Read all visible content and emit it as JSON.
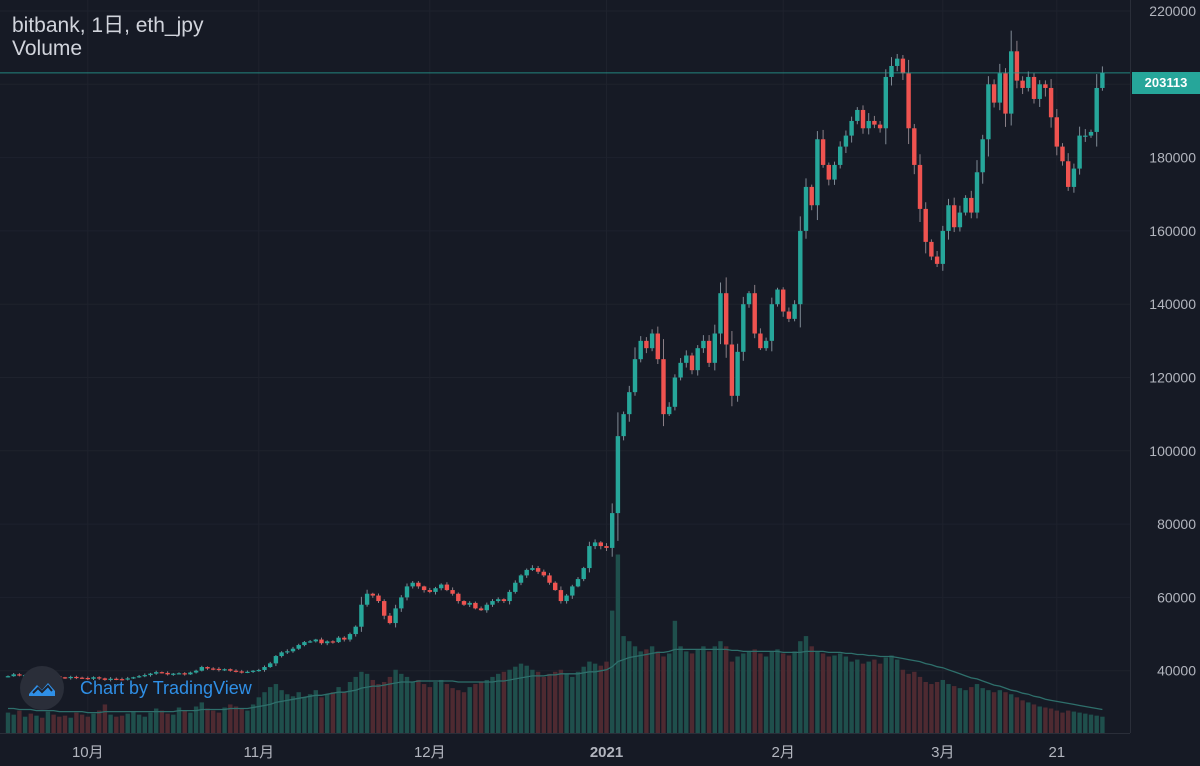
{
  "header": {
    "title": "bitbank, 1日, eth_jpy",
    "indicator": "Volume"
  },
  "last_price_label": "203113",
  "watermark": {
    "text": "Chart by TradingView",
    "icon": "tradingview-logo-icon"
  },
  "colors": {
    "background": "#161a25",
    "up": "#26a69a",
    "down": "#ef5350",
    "text": "#b2b5be",
    "last_price": "#26a69a"
  },
  "chart_data": {
    "type": "candlestick",
    "ylim": [
      23000,
      223000
    ],
    "yticks": [
      40000,
      60000,
      80000,
      100000,
      120000,
      140000,
      160000,
      180000,
      200000,
      220000
    ],
    "xticks": [
      {
        "label": "10月",
        "index": 14
      },
      {
        "label": "11月",
        "index": 44
      },
      {
        "label": "12月",
        "index": 74
      },
      {
        "label": "2021",
        "index": 105
      },
      {
        "label": "2月",
        "index": 136
      },
      {
        "label": "3月",
        "index": 164
      },
      {
        "label": "21",
        "index": 184
      }
    ],
    "last_price": 203113,
    "close": [
      38500,
      39000,
      38700,
      38800,
      38600,
      38900,
      38400,
      38700,
      38500,
      38200,
      38000,
      38300,
      38100,
      38000,
      37800,
      38200,
      37900,
      37500,
      37800,
      37700,
      37600,
      37900,
      38200,
      38500,
      38800,
      39200,
      39600,
      39400,
      39000,
      39200,
      39300,
      39000,
      39500,
      40000,
      41000,
      40600,
      40500,
      40200,
      40400,
      40000,
      39800,
      39500,
      39700,
      40000,
      40200,
      41000,
      42000,
      44000,
      45000,
      45300,
      46000,
      47000,
      47800,
      48000,
      48500,
      47500,
      48000,
      47800,
      49000,
      48500,
      50000,
      52000,
      58000,
      61000,
      60500,
      59000,
      55000,
      53000,
      57000,
      60000,
      63000,
      64000,
      63000,
      62000,
      61500,
      62500,
      63500,
      62000,
      61000,
      59000,
      58000,
      58500,
      57000,
      56500,
      58000,
      59000,
      59500,
      59000,
      61500,
      64000,
      66000,
      67500,
      68000,
      67000,
      66000,
      64000,
      62000,
      59000,
      60500,
      63000,
      65000,
      68000,
      74000,
      75000,
      74000,
      73500,
      83000,
      104000,
      110000,
      116000,
      125000,
      130000,
      128000,
      132000,
      125000,
      110000,
      112000,
      120000,
      124000,
      126000,
      122000,
      128000,
      130000,
      124000,
      132000,
      143000,
      129000,
      115000,
      127000,
      140000,
      143000,
      132000,
      128000,
      130000,
      140000,
      144000,
      138000,
      136000,
      140000,
      160000,
      172000,
      167000,
      185000,
      178000,
      174000,
      178000,
      183000,
      186000,
      190000,
      193000,
      188000,
      190000,
      189000,
      188000,
      202000,
      205000,
      207000,
      203000,
      188000,
      178000,
      166000,
      157000,
      153000,
      151000,
      160000,
      167000,
      161000,
      165000,
      169000,
      165000,
      176000,
      185000,
      200000,
      195000,
      203000,
      192000,
      209000,
      201000,
      199000,
      202000,
      196000,
      200000,
      199000,
      191000,
      183000,
      179000,
      172000,
      177000,
      186000,
      186000,
      187000,
      199000,
      203113
    ],
    "volume": [
      20,
      18,
      22,
      16,
      19,
      17,
      15,
      21,
      18,
      16,
      17,
      15,
      20,
      18,
      16,
      19,
      22,
      28,
      18,
      16,
      17,
      19,
      21,
      18,
      16,
      20,
      24,
      22,
      19,
      18,
      25,
      22,
      20,
      26,
      30,
      24,
      22,
      20,
      25,
      28,
      26,
      24,
      22,
      28,
      35,
      40,
      45,
      48,
      42,
      38,
      36,
      40,
      35,
      38,
      42,
      35,
      38,
      40,
      45,
      40,
      50,
      55,
      60,
      58,
      52,
      48,
      50,
      55,
      62,
      58,
      55,
      50,
      52,
      48,
      45,
      50,
      52,
      48,
      44,
      42,
      40,
      45,
      48,
      50,
      52,
      55,
      58,
      60,
      62,
      65,
      68,
      66,
      62,
      60,
      55,
      58,
      60,
      62,
      58,
      55,
      60,
      65,
      70,
      68,
      66,
      70,
      120,
      175,
      95,
      90,
      85,
      80,
      82,
      85,
      80,
      75,
      78,
      110,
      85,
      80,
      78,
      82,
      85,
      80,
      85,
      90,
      85,
      70,
      75,
      78,
      80,
      82,
      78,
      75,
      80,
      82,
      78,
      76,
      80,
      90,
      95,
      85,
      80,
      78,
      75,
      76,
      78,
      75,
      70,
      72,
      68,
      70,
      72,
      68,
      74,
      76,
      72,
      62,
      58,
      60,
      55,
      50,
      48,
      50,
      52,
      48,
      46,
      44,
      42,
      45,
      48,
      44,
      42,
      40,
      42,
      40,
      38,
      35,
      32,
      30,
      28,
      26,
      25,
      24,
      22,
      20,
      22,
      21,
      20,
      19,
      18,
      17,
      16
    ],
    "volume_ma": [
      24,
      24,
      23,
      23,
      23,
      22,
      22,
      22,
      22,
      21,
      21,
      21,
      21,
      21,
      20,
      20,
      20,
      21,
      21,
      21,
      21,
      21,
      21,
      21,
      21,
      21,
      21,
      21,
      21,
      21,
      22,
      22,
      22,
      22,
      23,
      23,
      23,
      23,
      23,
      24,
      24,
      24,
      24,
      25,
      26,
      27,
      28,
      30,
      31,
      32,
      33,
      34,
      35,
      36,
      37,
      37,
      38,
      39,
      40,
      40,
      41,
      42,
      44,
      45,
      46,
      46,
      47,
      48,
      49,
      50,
      50,
      50,
      51,
      51,
      51,
      51,
      51,
      51,
      51,
      50,
      50,
      50,
      50,
      50,
      50,
      50,
      51,
      51,
      52,
      53,
      54,
      55,
      56,
      56,
      56,
      57,
      57,
      58,
      58,
      58,
      58,
      59,
      60,
      60,
      61,
      62,
      65,
      70,
      72,
      74,
      75,
      76,
      77,
      78,
      79,
      79,
      80,
      82,
      82,
      82,
      82,
      82,
      82,
      82,
      82,
      82,
      82,
      81,
      81,
      80,
      80,
      80,
      80,
      80,
      80,
      80,
      79,
      79,
      79,
      79,
      80,
      80,
      80,
      80,
      79,
      79,
      79,
      78,
      78,
      77,
      77,
      76,
      76,
      75,
      75,
      75,
      74,
      73,
      72,
      71,
      70,
      68,
      67,
      65,
      64,
      62,
      60,
      58,
      56,
      54,
      53,
      51,
      49,
      47,
      46,
      44,
      42,
      41,
      39,
      38,
      36,
      35,
      33,
      32,
      31,
      30,
      29,
      28,
      27,
      26,
      25,
      24,
      23
    ]
  }
}
